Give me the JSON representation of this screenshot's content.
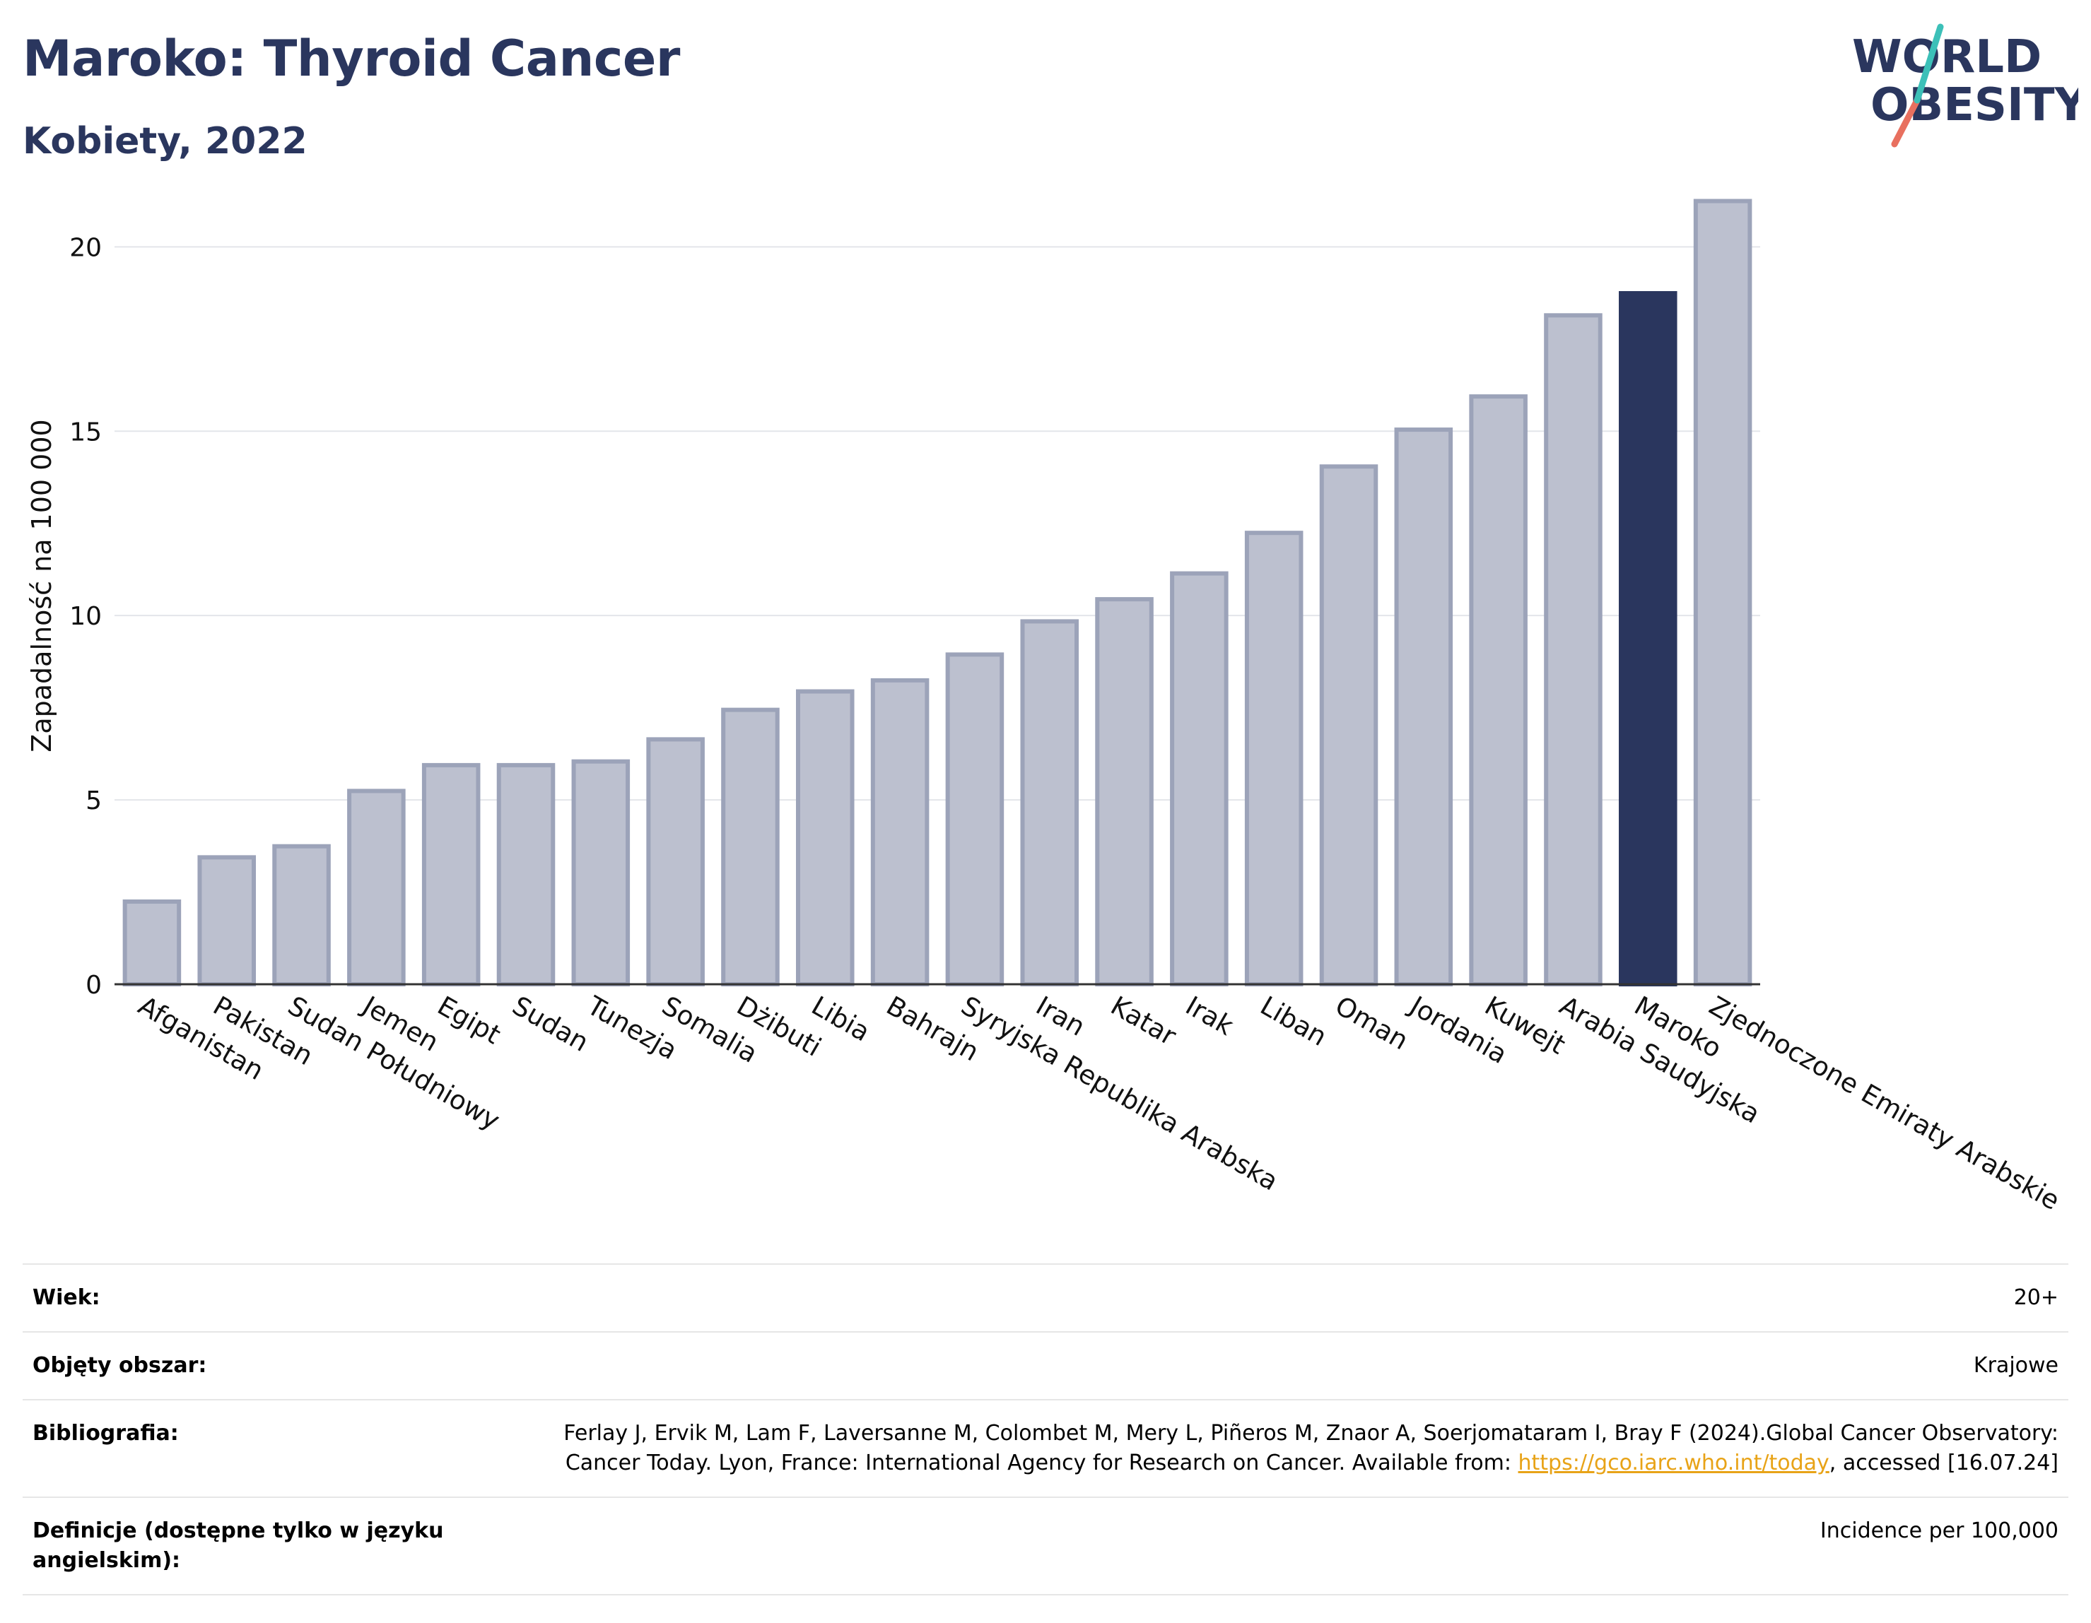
{
  "header": {
    "title": "Maroko: Thyroid Cancer",
    "subtitle": "Kobiety, 2022",
    "logo_line1": "WORLD",
    "logo_line2": "OBESITY"
  },
  "colors": {
    "highlight": "#2a365e",
    "bar": "#bcc0cf",
    "bar_border": "#9ca3b9",
    "title": "#2a365e"
  },
  "chart_data": {
    "type": "bar",
    "title": "",
    "xlabel": "",
    "ylabel": "Zapadalność na 100 000",
    "ylim": [
      0,
      22
    ],
    "yticks": [
      0,
      5,
      10,
      15,
      20
    ],
    "grid": true,
    "highlight": "Maroko",
    "categories": [
      "Afganistan",
      "Pakistan",
      "Sudan Południowy",
      "Jemen",
      "Egipt",
      "Sudan",
      "Tunezja",
      "Somalia",
      "Dżibuti",
      "Libia",
      "Bahrajn",
      "Syryjska Republika Arabska",
      "Iran",
      "Katar",
      "Irak",
      "Liban",
      "Oman",
      "Jordania",
      "Kuwejt",
      "Arabia Saudyjska",
      "Maroko",
      "Zjednoczone Emiraty Arabskie"
    ],
    "values": [
      2.3,
      3.5,
      3.8,
      5.3,
      6.0,
      6.0,
      6.1,
      6.7,
      7.5,
      8.0,
      8.3,
      9.0,
      9.9,
      10.5,
      11.2,
      12.3,
      14.1,
      15.1,
      16.0,
      18.2,
      18.8,
      21.3
    ]
  },
  "meta": {
    "rows": [
      {
        "key": "Wiek:",
        "value": "20+"
      },
      {
        "key": "Objęty obszar:",
        "value": "Krajowe"
      },
      {
        "key": "Bibliografia:",
        "value_pre": "Ferlay J, Ervik M, Lam F, Laversanne M, Colombet M, Mery L, Piñeros M, Znaor A, Soerjomataram I, Bray F (2024).Global Cancer Observatory: Cancer Today. Lyon, France: International Agency for Research on Cancer. Available from: ",
        "link": "https://gco.iarc.who.int/today",
        "value_post": ", accessed [16.07.24]"
      },
      {
        "key": "Definicje (dostępne tylko w języku angielskim):",
        "value": "Incidence per 100,000"
      }
    ]
  }
}
